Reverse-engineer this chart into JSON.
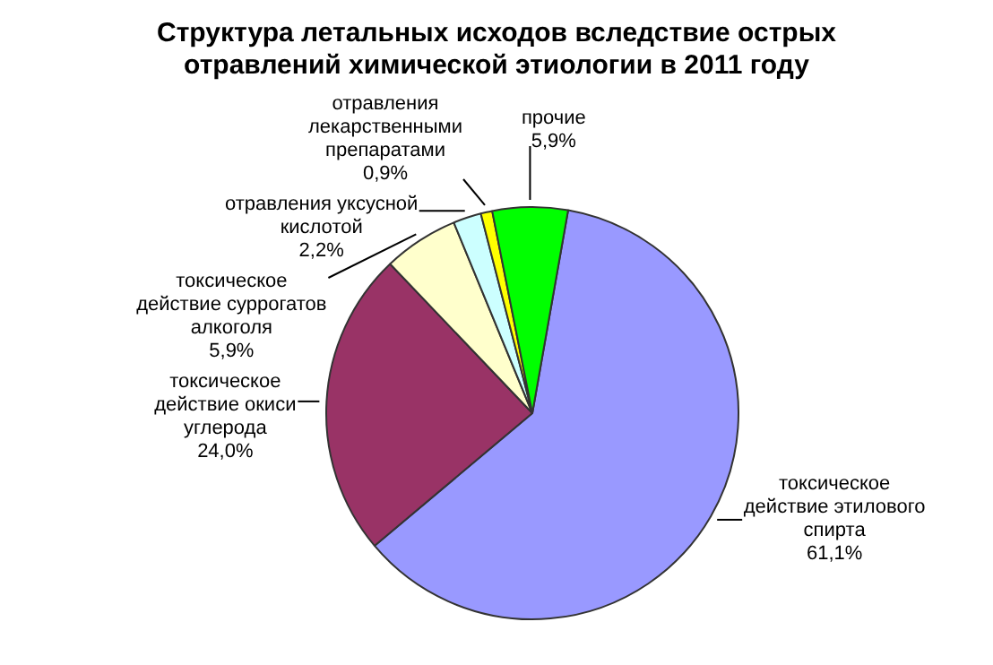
{
  "chart_data": {
    "type": "pie",
    "title": "Структура летальных исходов вследствие острых отравлений химической этиологии в 2011 году",
    "categories": [
      "токсическое действие этилового спирта",
      "токсическое действие окиси углерода",
      "токсическое действие суррогатов алкоголя",
      "отравления уксусной кислотой",
      "отравления лекарственными препаратами",
      "прочие"
    ],
    "values": [
      61.1,
      24.0,
      5.9,
      2.2,
      0.9,
      5.9
    ],
    "value_labels": [
      "61,1%",
      "24,0%",
      "5,9%",
      "2,2%",
      "0,9%",
      "5,9%"
    ],
    "colors": [
      "#9999ff",
      "#993366",
      "#ffffcc",
      "#ccffff",
      "#ffff00",
      "#00ff00"
    ],
    "legend": false
  }
}
